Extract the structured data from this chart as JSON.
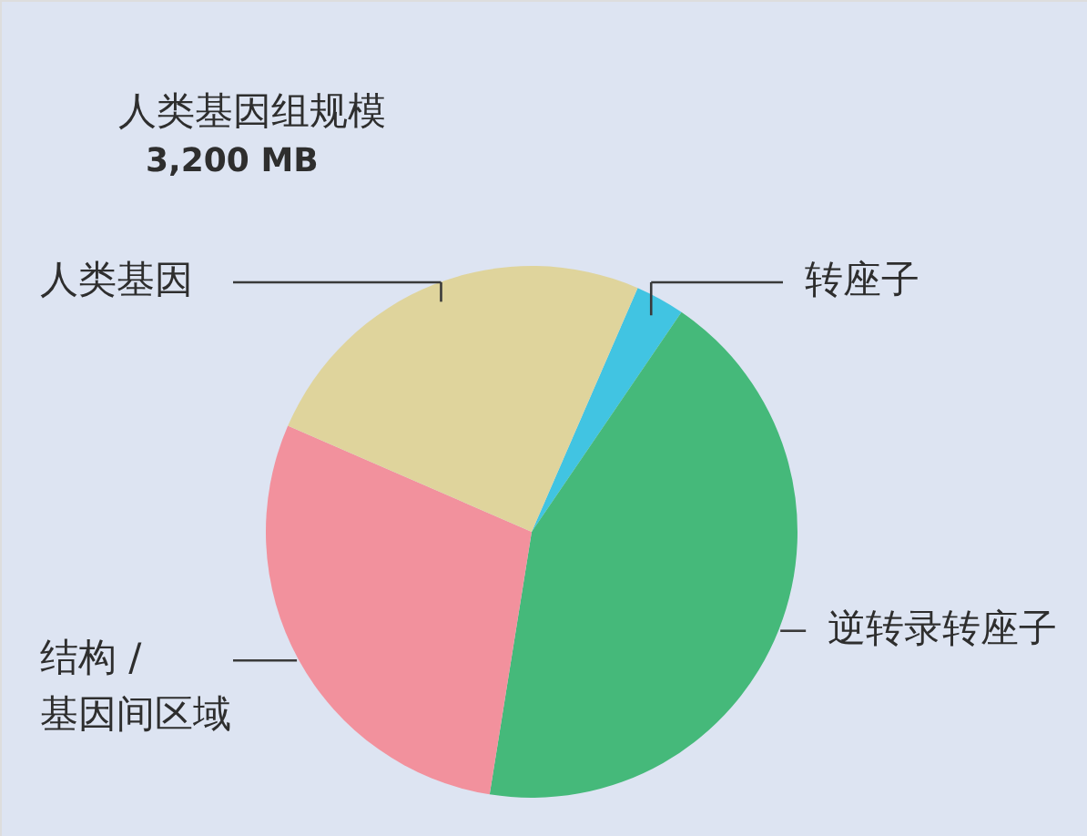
{
  "chart_data": {
    "type": "pie",
    "title": "人类基因组规模",
    "subtitle": "3,200 MB",
    "categories": [
      "转座子",
      "逆转录转座子",
      "结构 /\n基因间区域",
      "人类基因"
    ],
    "values": [
      3,
      43,
      29,
      25
    ],
    "colors": [
      "#41c4e2",
      "#45b97a",
      "#f2919d",
      "#dfd49c"
    ]
  }
}
